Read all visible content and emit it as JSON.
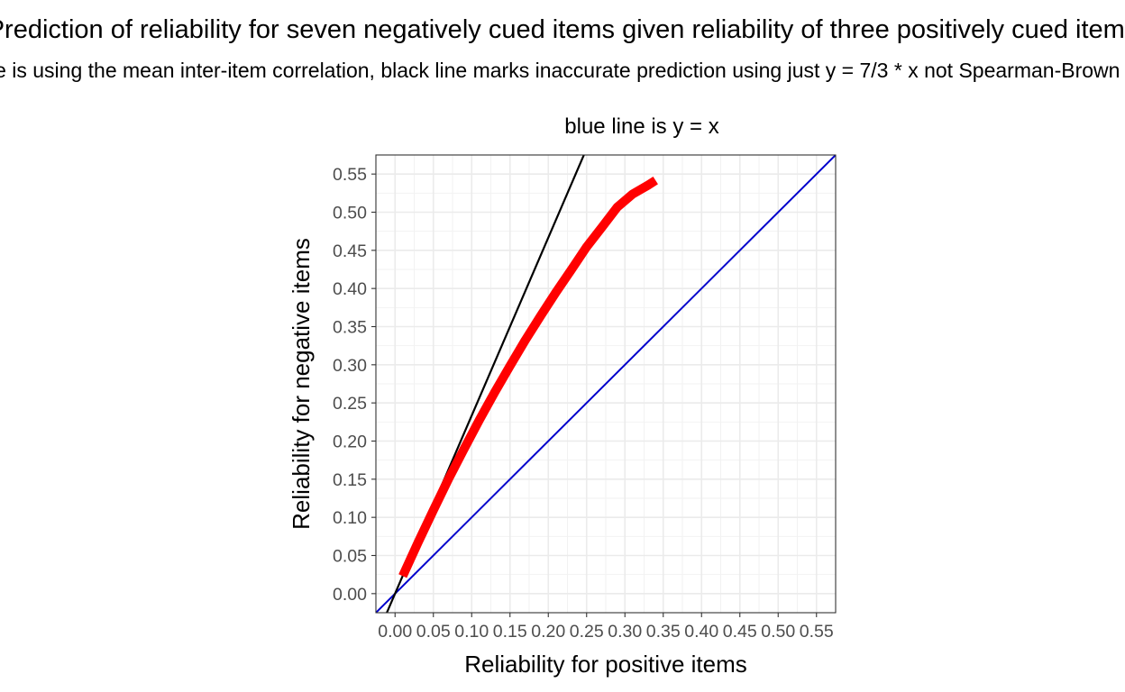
{
  "chart_data": {
    "type": "line",
    "title": "Prediction of reliability for seven negatively cued items given reliability of three positively cued items",
    "subtitle": "Red line is using the mean inter-item correlation, black line marks inaccurate prediction using just y = 7/3 * x not Spearman-Brown formula",
    "panel_title": "blue line is y = x",
    "xlabel": "Reliability for positive items",
    "ylabel": "Reliability for negative items",
    "xlim": [
      -0.025,
      0.575
    ],
    "ylim": [
      -0.025,
      0.575
    ],
    "xticks": [
      0.0,
      0.05,
      0.1,
      0.15,
      0.2,
      0.25,
      0.3,
      0.35,
      0.4,
      0.45,
      0.5,
      0.55
    ],
    "yticks": [
      0.0,
      0.05,
      0.1,
      0.15,
      0.2,
      0.25,
      0.3,
      0.35,
      0.4,
      0.45,
      0.5,
      0.55
    ],
    "xtick_labels": [
      "0.00",
      "0.05",
      "0.10",
      "0.15",
      "0.20",
      "0.25",
      "0.30",
      "0.35",
      "0.40",
      "0.45",
      "0.50",
      "0.55"
    ],
    "ytick_labels": [
      "0.00",
      "0.05",
      "0.10",
      "0.15",
      "0.20",
      "0.25",
      "0.30",
      "0.35",
      "0.40",
      "0.45",
      "0.50",
      "0.55"
    ],
    "grid": true,
    "series": [
      {
        "color": "#ff0000",
        "x": [
          0.01,
          0.03,
          0.05,
          0.07,
          0.09,
          0.11,
          0.13,
          0.15,
          0.17,
          0.19,
          0.21,
          0.23,
          0.25,
          0.27,
          0.29,
          0.31,
          0.33,
          0.34
        ],
        "y": [
          0.0231,
          0.0671,
          0.1094,
          0.1507,
          0.1896,
          0.2276,
          0.2639,
          0.2985,
          0.3323,
          0.3641,
          0.395,
          0.4245,
          0.4545,
          0.4803,
          0.5066,
          0.5237,
          0.5353,
          0.5417
        ]
      },
      {
        "color": "#000000",
        "x": [
          -0.025,
          0.25
        ],
        "y": [
          -0.0583,
          0.5833
        ]
      },
      {
        "color": "#0000cc",
        "x": [
          -0.025,
          0.575
        ],
        "y": [
          -0.025,
          0.575
        ]
      }
    ]
  }
}
